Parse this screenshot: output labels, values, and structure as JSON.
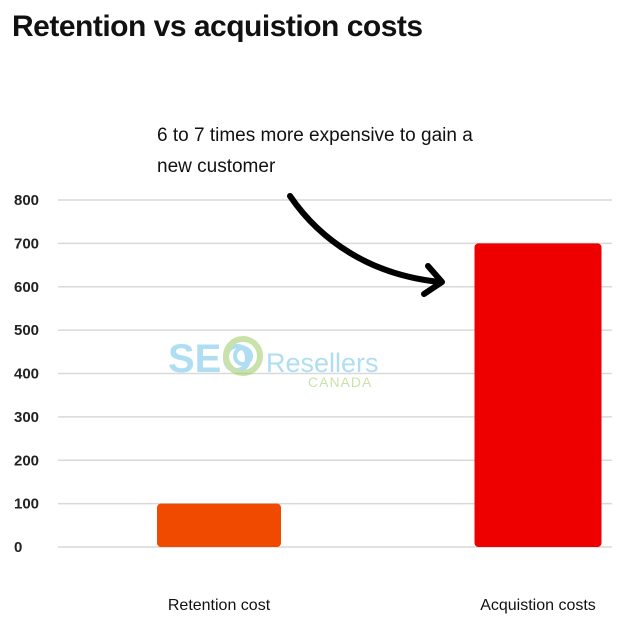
{
  "chart_data": {
    "type": "bar",
    "title": "Retention vs acquistion costs",
    "categories": [
      "Retention cost",
      "Acquistion costs"
    ],
    "values": [
      100,
      700
    ],
    "ylim": [
      0,
      800
    ],
    "yticks": [
      0,
      100,
      200,
      300,
      400,
      500,
      600,
      700,
      800
    ],
    "grid": true,
    "xlabel": "",
    "ylabel": "",
    "annotation": "6 to 7 times more expensive to gain a new customer"
  },
  "colors": {
    "bar_retention": "#f04a00",
    "bar_acquisition": "#ee0000",
    "grid": "#d9d9d9",
    "arrow": "#000000"
  },
  "watermark": {
    "brand_text": "SEO",
    "brand_sub": "Resellers",
    "brand_country": "CANADA",
    "logo_icon": "seo-swirl-logo"
  }
}
